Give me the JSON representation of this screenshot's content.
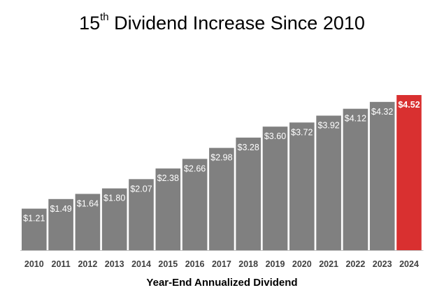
{
  "title": {
    "prefix": "15",
    "superscript": "th",
    "suffix": " Dividend Increase Since 2010"
  },
  "chart_data": {
    "type": "bar",
    "categories": [
      "2010",
      "2011",
      "2012",
      "2013",
      "2014",
      "2015",
      "2016",
      "2017",
      "2018",
      "2019",
      "2020",
      "2021",
      "2022",
      "2023",
      "2024"
    ],
    "values": [
      1.21,
      1.49,
      1.64,
      1.8,
      2.07,
      2.38,
      2.66,
      2.98,
      3.28,
      3.6,
      3.72,
      3.92,
      4.12,
      4.32,
      4.52
    ],
    "data_labels": [
      "$1.21",
      "$1.49",
      "$1.64",
      "$1.80",
      "$2.07",
      "$2.38",
      "$2.66",
      "$2.98",
      "$3.28",
      "$3.60",
      "$3.72",
      "$3.92",
      "$4.12",
      "$4.32",
      "$4.52"
    ],
    "xlabel": "Year-End Annualized Dividend",
    "ylabel": "",
    "ylim": [
      0,
      4.52
    ],
    "grid": false,
    "colors": {
      "default": "#808080",
      "highlight": "#d93030",
      "highlight_index": 14
    }
  }
}
